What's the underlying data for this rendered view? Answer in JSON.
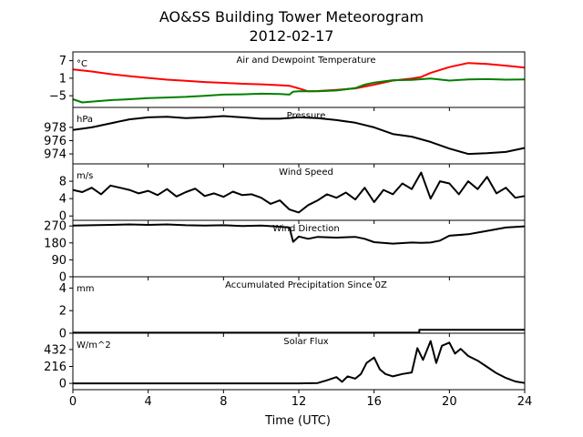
{
  "chart_data": {
    "type": "line",
    "title": "AO&SS Building Tower Meteorogram",
    "subtitle": "2012-02-17",
    "xlabel": "Time (UTC)",
    "xlim": [
      0,
      24
    ],
    "xticks": [
      0,
      4,
      8,
      12,
      16,
      20,
      24
    ],
    "colors": {
      "temperature": "#ff0000",
      "dewpoint": "#008000",
      "default": "#000000"
    },
    "panels": [
      {
        "id": "temperature",
        "label": "Air and Dewpoint Temperature",
        "unit": "°C",
        "ylim": [
          -9,
          10
        ],
        "yticks": [
          7,
          1,
          -5
        ],
        "ytick_labels": [
          "7",
          "1",
          "−5"
        ],
        "series": [
          {
            "color_key": "temperature",
            "x": [
              0,
              1,
              2,
              3,
              4,
              5,
              6,
              7,
              8,
              9,
              10,
              11,
              11.5,
              12,
              12.5,
              13,
              14,
              15,
              16,
              17,
              18,
              18.5,
              19,
              20,
              21,
              22,
              23,
              24
            ],
            "y": [
              4,
              3.3,
              2.4,
              1.7,
              1.1,
              0.5,
              0.1,
              -0.3,
              -0.6,
              -0.9,
              -1.1,
              -1.4,
              -1.6,
              -2.5,
              -3.5,
              -3.4,
              -3.0,
              -2.5,
              -1.2,
              0.2,
              0.9,
              1.4,
              2.8,
              4.8,
              6.2,
              5.9,
              5.3,
              4.6
            ]
          },
          {
            "color_key": "dewpoint",
            "x": [
              0,
              0.5,
              1,
              2,
              3,
              4,
              5,
              6,
              7,
              8,
              9,
              10,
              11,
              11.5,
              11.7,
              12,
              13,
              14,
              15,
              15.5,
              16,
              17,
              18,
              19,
              20,
              21,
              22,
              23,
              24
            ],
            "y": [
              -6.2,
              -7.3,
              -7.0,
              -6.5,
              -6.2,
              -5.8,
              -5.6,
              -5.4,
              -5.0,
              -4.6,
              -4.5,
              -4.3,
              -4.4,
              -4.6,
              -3.6,
              -3.5,
              -3.5,
              -3.2,
              -2.4,
              -1.2,
              -0.5,
              0.3,
              0.4,
              0.9,
              0.2,
              0.6,
              0.7,
              0.5,
              0.6
            ]
          }
        ]
      },
      {
        "id": "pressure",
        "label": "Pressure",
        "unit": "hPa",
        "ylim": [
          972.5,
          981.0
        ],
        "yticks": [
          978,
          976,
          974
        ],
        "ytick_labels": [
          "978",
          "976",
          "974"
        ],
        "series": [
          {
            "color_key": "default",
            "x": [
              0,
              1,
              2,
              3,
              4,
              5,
              6,
              7,
              8,
              9,
              10,
              11,
              12,
              13,
              14,
              15,
              16,
              17,
              18,
              19,
              20,
              21,
              22,
              23,
              24
            ],
            "y": [
              977.6,
              978.0,
              978.6,
              979.2,
              979.5,
              979.6,
              979.4,
              979.5,
              979.7,
              979.5,
              979.3,
              979.3,
              979.5,
              979.4,
              979.1,
              978.7,
              978.0,
              977.0,
              976.6,
              975.8,
              974.8,
              974.0,
              974.1,
              974.3,
              974.9
            ]
          }
        ]
      },
      {
        "id": "wind_speed",
        "label": "Wind Speed",
        "unit": "m/s",
        "ylim": [
          -1,
          12
        ],
        "yticks": [
          8,
          4,
          0
        ],
        "ytick_labels": [
          "8",
          "4",
          "0"
        ],
        "series": [
          {
            "color_key": "default",
            "x": [
              0,
              0.5,
              1,
              1.5,
              2,
              2.5,
              3,
              3.5,
              4,
              4.5,
              5,
              5.5,
              6,
              6.5,
              7,
              7.5,
              8,
              8.5,
              9,
              9.5,
              10,
              10.5,
              11,
              11.5,
              12,
              12.5,
              13,
              13.5,
              14,
              14.5,
              15,
              15.5,
              16,
              16.5,
              17,
              17.5,
              18,
              18.5,
              19,
              19.5,
              20,
              20.5,
              21,
              21.5,
              22,
              22.5,
              23,
              23.5,
              24
            ],
            "y": [
              6,
              5.5,
              6.5,
              5,
              7,
              6.5,
              6,
              5.2,
              5.8,
              4.8,
              6.2,
              4.5,
              5.5,
              6.3,
              4.6,
              5.2,
              4.4,
              5.6,
              4.8,
              5,
              4.2,
              2.8,
              3.6,
              1.5,
              0.8,
              2.5,
              3.6,
              5,
              4.2,
              5.4,
              3.8,
              6.5,
              3.2,
              6,
              5,
              7.5,
              6.2,
              10,
              4,
              8,
              7.5,
              5,
              8,
              6.2,
              9,
              5.2,
              6.5,
              4.2,
              4.6
            ]
          }
        ]
      },
      {
        "id": "wind_direction",
        "label": "Wind Direction",
        "unit": "",
        "ylim": [
          0,
          300
        ],
        "yticks": [
          270,
          180,
          90,
          0
        ],
        "ytick_labels": [
          "270",
          "180",
          "90",
          "0"
        ],
        "series": [
          {
            "color_key": "default",
            "x": [
              0,
              1,
              2,
              3,
              4,
              5,
              6,
              7,
              8,
              9,
              10,
              11,
              11.5,
              11.7,
              12,
              12.5,
              13,
              14,
              15,
              15.5,
              16,
              17,
              18,
              18.5,
              19,
              19.5,
              20,
              21,
              22,
              23,
              24
            ],
            "y": [
              272,
              274,
              276,
              278,
              276,
              278,
              274,
              272,
              274,
              270,
              272,
              266,
              262,
              186,
              214,
              202,
              212,
              208,
              212,
              202,
              184,
              176,
              182,
              180,
              182,
              192,
              218,
              226,
              244,
              262,
              268
            ]
          }
        ]
      },
      {
        "id": "precipitation",
        "label": "Accumulated Precipitation Since 0Z",
        "unit": "mm",
        "ylim": [
          0,
          5
        ],
        "yticks": [
          4,
          2,
          0
        ],
        "ytick_labels": [
          "4",
          "2",
          "0"
        ],
        "series": [
          {
            "color_key": "default",
            "x": [
              0,
              18.4,
              18.4,
              24
            ],
            "y": [
              0.05,
              0.05,
              0.3,
              0.3
            ]
          }
        ]
      },
      {
        "id": "solar_flux",
        "label": "Solar Flux",
        "unit": "W/m^2",
        "ylim": [
          -80,
          640
        ],
        "yticks": [
          432,
          216,
          0
        ],
        "ytick_labels": [
          "432",
          "216",
          "0"
        ],
        "series": [
          {
            "color_key": "default",
            "x": [
              0,
              6,
              12,
              13,
              13.5,
              14,
              14.3,
              14.6,
              15,
              15.3,
              15.6,
              16,
              16.3,
              16.6,
              17,
              17.5,
              18,
              18.3,
              18.6,
              19,
              19.3,
              19.6,
              20,
              20.3,
              20.6,
              21,
              21.5,
              22,
              22.5,
              23,
              23.5,
              24
            ],
            "y": [
              0,
              0,
              0,
              5,
              40,
              80,
              20,
              90,
              60,
              120,
              260,
              330,
              180,
              120,
              90,
              120,
              140,
              450,
              300,
              540,
              260,
              480,
              520,
              380,
              440,
              350,
              290,
              210,
              130,
              70,
              25,
              5
            ]
          }
        ]
      }
    ]
  }
}
